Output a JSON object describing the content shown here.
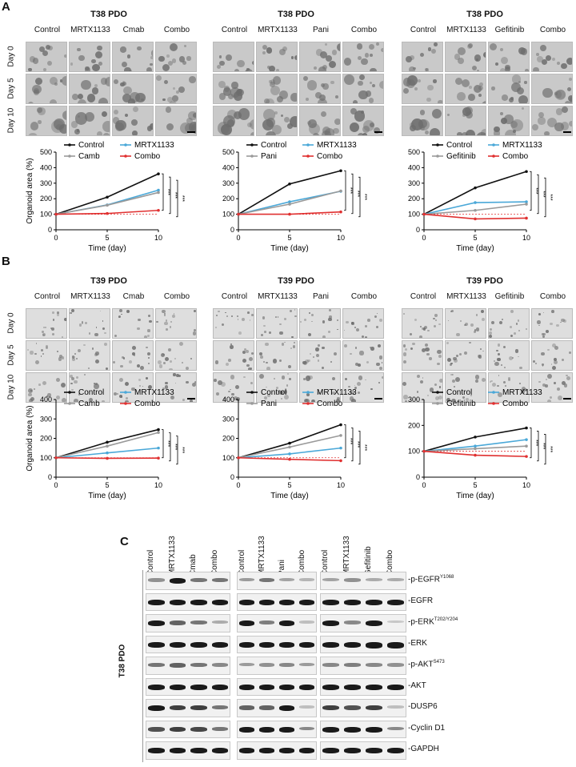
{
  "panels": {
    "A": {
      "letter": "A",
      "groups": [
        {
          "title": "T38 PDO",
          "columns": [
            "Control",
            "MRTX1133",
            "Cmab",
            "Combo"
          ]
        },
        {
          "title": "T38 PDO",
          "columns": [
            "Control",
            "MRTX1133",
            "Pani",
            "Combo"
          ]
        },
        {
          "title": "T38 PDO",
          "columns": [
            "Control",
            "MRTX1133",
            "Gefitinib",
            "Combo"
          ]
        }
      ],
      "days": [
        "Day 0",
        "Day 5",
        "Day 10"
      ]
    },
    "B": {
      "letter": "B",
      "groups": [
        {
          "title": "T39 PDO",
          "columns": [
            "Control",
            "MRTX1133",
            "Cmab",
            "Combo"
          ]
        },
        {
          "title": "T39 PDO",
          "columns": [
            "Control",
            "MRTX1133",
            "Pani",
            "Combo"
          ]
        },
        {
          "title": "T39 PDO",
          "columns": [
            "Control",
            "MRTX1133",
            "Gefitinib",
            "Combo"
          ]
        }
      ],
      "days": [
        "Day 0",
        "Day 5",
        "Day 10"
      ]
    },
    "C": {
      "letter": "C",
      "side_label": "T38 PDO",
      "lane_groups": [
        [
          "Control",
          "MRTX1133",
          "Cmab",
          "Combo"
        ],
        [
          "Control",
          "MRTX1133",
          "Pani",
          "Combo"
        ],
        [
          "Control",
          "MRTX1133",
          "Gefitinib",
          "Combo"
        ]
      ],
      "rows": [
        {
          "name": "-p-EGFR",
          "sup": "Y1068"
        },
        {
          "name": "-EGFR",
          "sup": ""
        },
        {
          "name": "-p-ERK",
          "sup": "T202/Y204"
        },
        {
          "name": "-ERK",
          "sup": ""
        },
        {
          "name": "-p-AKT",
          "sup": "S473"
        },
        {
          "name": "-AKT",
          "sup": ""
        },
        {
          "name": "-DUSP6",
          "sup": ""
        },
        {
          "name": "-Cyclin D1",
          "sup": ""
        },
        {
          "name": "-GAPDH",
          "sup": ""
        }
      ]
    }
  },
  "significance": "***",
  "chart_data": [
    {
      "type": "line",
      "panel": "A",
      "x": [
        0,
        5,
        10
      ],
      "ylim": [
        0,
        500
      ],
      "yticks": [
        0,
        100,
        200,
        300,
        400,
        500
      ],
      "xticks": [
        0,
        5,
        10
      ],
      "xlabel": "Time (day)",
      "ylabel": "Organoid area (%)",
      "series": [
        {
          "name": "Control",
          "color": "#111111",
          "values": [
            100,
            210,
            360
          ]
        },
        {
          "name": "MRTX1133",
          "color": "#4aa8d8",
          "values": [
            100,
            160,
            255
          ]
        },
        {
          "name": "Camb",
          "color": "#9a9a9a",
          "values": [
            100,
            158,
            240
          ]
        },
        {
          "name": "Combo",
          "color": "#e03030",
          "values": [
            100,
            105,
            125
          ]
        }
      ]
    },
    {
      "type": "line",
      "panel": "A",
      "x": [
        0,
        5,
        10
      ],
      "ylim": [
        0,
        500
      ],
      "yticks": [
        0,
        100,
        200,
        300,
        400,
        500
      ],
      "xticks": [
        0,
        5,
        10
      ],
      "xlabel": "Time (day)",
      "ylabel": "",
      "series": [
        {
          "name": "Control",
          "color": "#111111",
          "values": [
            100,
            295,
            380
          ]
        },
        {
          "name": "MRTX1133",
          "color": "#4aa8d8",
          "values": [
            100,
            180,
            248
          ]
        },
        {
          "name": "Pani",
          "color": "#9a9a9a",
          "values": [
            100,
            165,
            250
          ]
        },
        {
          "name": "Combo",
          "color": "#e03030",
          "values": [
            100,
            100,
            115
          ]
        }
      ]
    },
    {
      "type": "line",
      "panel": "A",
      "x": [
        0,
        5,
        10
      ],
      "ylim": [
        0,
        500
      ],
      "yticks": [
        0,
        100,
        200,
        300,
        400,
        500
      ],
      "xticks": [
        0,
        5,
        10
      ],
      "xlabel": "Time (day)",
      "ylabel": "",
      "series": [
        {
          "name": "Control",
          "color": "#111111",
          "values": [
            100,
            270,
            375
          ]
        },
        {
          "name": "MRTX1133",
          "color": "#4aa8d8",
          "values": [
            100,
            175,
            180
          ]
        },
        {
          "name": "Gefitinib",
          "color": "#9a9a9a",
          "values": [
            100,
            125,
            165
          ]
        },
        {
          "name": "Combo",
          "color": "#e03030",
          "values": [
            100,
            70,
            75
          ]
        }
      ]
    },
    {
      "type": "line",
      "panel": "B",
      "x": [
        0,
        5,
        10
      ],
      "ylim": [
        0,
        400
      ],
      "yticks": [
        0,
        100,
        200,
        300,
        400
      ],
      "xticks": [
        0,
        5,
        10
      ],
      "xlabel": "Time (day)",
      "ylabel": "Organoid area (%)",
      "series": [
        {
          "name": "Control",
          "color": "#111111",
          "values": [
            100,
            180,
            245
          ]
        },
        {
          "name": "MRTX1133",
          "color": "#4aa8d8",
          "values": [
            100,
            125,
            150
          ]
        },
        {
          "name": "Camb",
          "color": "#9a9a9a",
          "values": [
            100,
            160,
            230
          ]
        },
        {
          "name": "Combo",
          "color": "#e03030",
          "values": [
            100,
            97,
            98
          ]
        }
      ]
    },
    {
      "type": "line",
      "panel": "B",
      "x": [
        0,
        5,
        10
      ],
      "ylim": [
        0,
        400
      ],
      "yticks": [
        0,
        100,
        200,
        300,
        400
      ],
      "xticks": [
        0,
        5,
        10
      ],
      "xlabel": "Time (day)",
      "ylabel": "",
      "series": [
        {
          "name": "Control",
          "color": "#111111",
          "values": [
            100,
            175,
            270
          ]
        },
        {
          "name": "MRTX1133",
          "color": "#4aa8d8",
          "values": [
            100,
            120,
            150
          ]
        },
        {
          "name": "Pani",
          "color": "#9a9a9a",
          "values": [
            100,
            155,
            215
          ]
        },
        {
          "name": "Combo",
          "color": "#e03030",
          "values": [
            100,
            92,
            85
          ]
        }
      ]
    },
    {
      "type": "line",
      "panel": "B",
      "x": [
        0,
        5,
        10
      ],
      "ylim": [
        0,
        300
      ],
      "yticks": [
        0,
        100,
        200,
        300
      ],
      "xticks": [
        0,
        5,
        10
      ],
      "xlabel": "Time (day)",
      "ylabel": "",
      "series": [
        {
          "name": "Control",
          "color": "#111111",
          "values": [
            100,
            155,
            190
          ]
        },
        {
          "name": "MRTX1133",
          "color": "#4aa8d8",
          "values": [
            100,
            120,
            145
          ]
        },
        {
          "name": "Gefitinib",
          "color": "#9a9a9a",
          "values": [
            100,
            110,
            120
          ]
        },
        {
          "name": "Combo",
          "color": "#e03030",
          "values": [
            100,
            85,
            80
          ]
        }
      ]
    }
  ]
}
